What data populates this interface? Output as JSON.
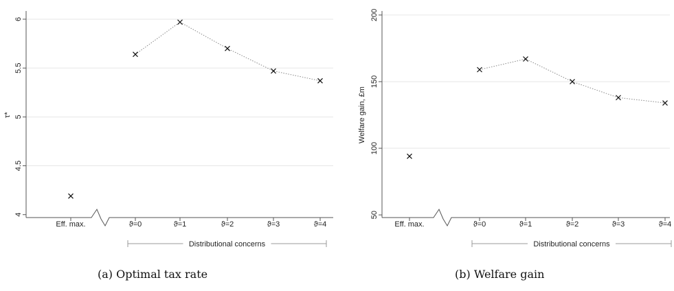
{
  "chart_data": [
    {
      "type": "scatter",
      "title": "",
      "xlabel": "",
      "ylabel": "τ*",
      "categories": [
        "Eff. max.",
        "ϑ=0",
        "ϑ=1",
        "ϑ=2",
        "ϑ=3",
        "ϑ=4"
      ],
      "points": [
        {
          "x": "Eff. max.",
          "y": 4.19
        },
        {
          "x": "ϑ=0",
          "y": 5.64
        },
        {
          "x": "ϑ=1",
          "y": 5.97
        },
        {
          "x": "ϑ=2",
          "y": 5.7
        },
        {
          "x": "ϑ=3",
          "y": 5.47
        },
        {
          "x": "ϑ=4",
          "y": 5.37
        }
      ],
      "connected_from": "ϑ=0",
      "ylim": [
        3.97,
        6.07
      ],
      "yticks": [
        4,
        4.5,
        5,
        5.5,
        6
      ],
      "ytick_labels": [
        "4",
        "4.5",
        "5",
        "5.5",
        "6"
      ],
      "grid": "horizontal",
      "axis_break": true,
      "group_label": "Distributional concerns",
      "caption": "(a)  Optimal tax rate"
    },
    {
      "type": "scatter",
      "title": "",
      "xlabel": "",
      "ylabel": "Welfare gain, £m",
      "categories": [
        "Eff. max.",
        "ϑ=0",
        "ϑ=1",
        "ϑ=2",
        "ϑ=3",
        "ϑ=4"
      ],
      "points": [
        {
          "x": "Eff. max.",
          "y": 94
        },
        {
          "x": "ϑ=0",
          "y": 159
        },
        {
          "x": "ϑ=1",
          "y": 167
        },
        {
          "x": "ϑ=2",
          "y": 150
        },
        {
          "x": "ϑ=3",
          "y": 138
        },
        {
          "x": "ϑ=4",
          "y": 134
        }
      ],
      "connected_from": "ϑ=0",
      "ylim": [
        48,
        202
      ],
      "yticks": [
        50,
        100,
        150,
        200
      ],
      "ytick_labels": [
        "50",
        "100",
        "150",
        "200"
      ],
      "grid": "horizontal",
      "axis_break": true,
      "group_label": "Distributional concerns",
      "caption": "(b)  Welfare gain"
    }
  ]
}
